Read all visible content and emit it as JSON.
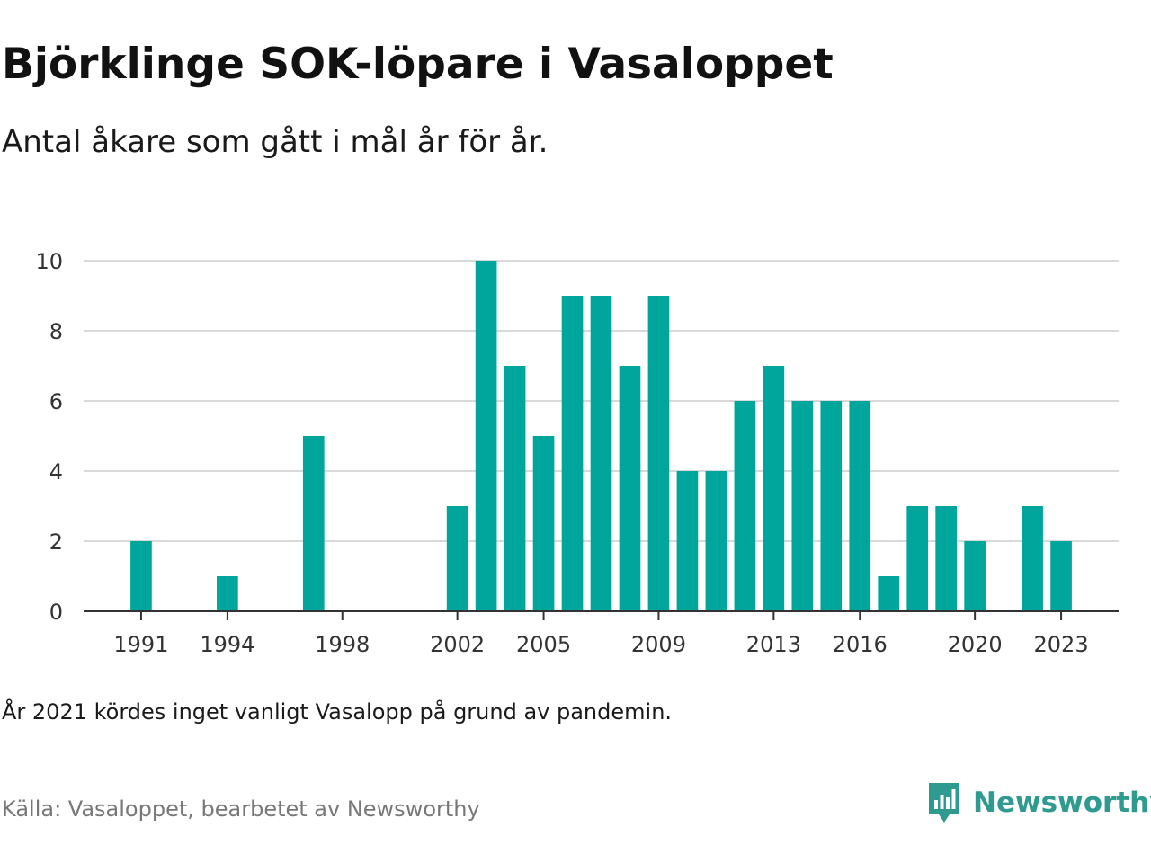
{
  "header": {
    "title": "Björklinge SOK-löpare i Vasaloppet",
    "subtitle": "Antal åkare som gått i mål år för år."
  },
  "footer": {
    "note": "År 2021 kördes inget vanligt Vasalopp på grund av pandemin.",
    "source": "Källa: Vasaloppet, bearbetet av Newsworthy",
    "brand": "Newsworthy",
    "brand_icon": "newsworthy-logo-icon"
  },
  "colors": {
    "bar": "#00a69c",
    "grid": "#d9d9d9",
    "axis": "#333333",
    "brand": "#2f9a8f"
  },
  "chart_data": {
    "type": "bar",
    "title": "Björklinge SOK-löpare i Vasaloppet",
    "subtitle": "Antal åkare som gått i mål år för år.",
    "x": [
      1991,
      1994,
      1997,
      2002,
      2003,
      2004,
      2005,
      2006,
      2007,
      2008,
      2009,
      2010,
      2011,
      2012,
      2013,
      2014,
      2015,
      2016,
      2017,
      2018,
      2019,
      2020,
      2022,
      2023
    ],
    "values": [
      2,
      1,
      5,
      3,
      10,
      7,
      5,
      9,
      9,
      7,
      9,
      4,
      4,
      6,
      7,
      6,
      6,
      6,
      1,
      3,
      3,
      2,
      3,
      2
    ],
    "xlim": [
      1989,
      2025
    ],
    "ylim": [
      0,
      10
    ],
    "x_ticks": [
      "1991",
      "1994",
      "1998",
      "2002",
      "2005",
      "2009",
      "2013",
      "2016",
      "2020",
      "2023"
    ],
    "y_ticks": [
      "0",
      "2",
      "4",
      "6",
      "8",
      "10"
    ],
    "grid": true,
    "xlabel": "",
    "ylabel": ""
  }
}
